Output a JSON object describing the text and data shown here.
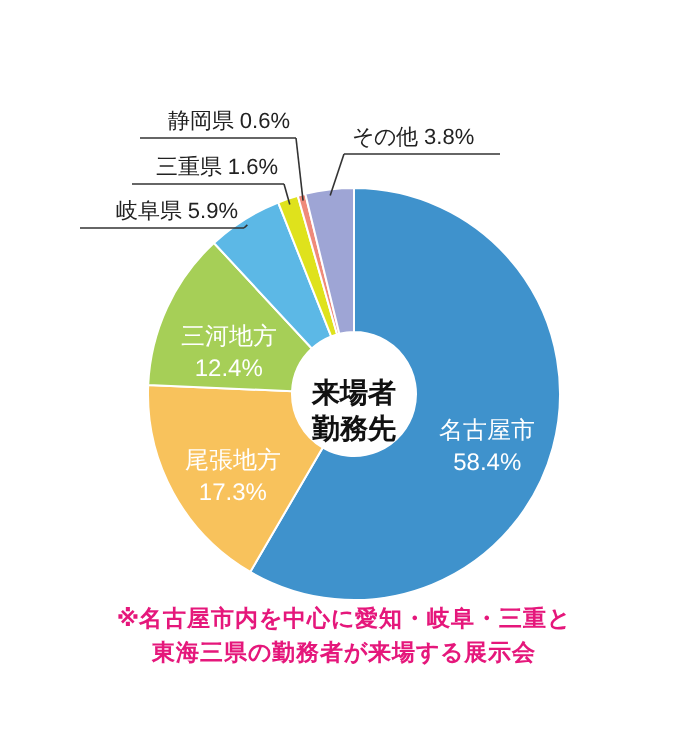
{
  "chart_data": {
    "type": "donut",
    "title": "来場者勤務先",
    "categories": [
      "名古屋市",
      "尾張地方",
      "三河地方",
      "岐阜県",
      "三重県",
      "静岡県",
      "その他"
    ],
    "values": [
      58.4,
      17.3,
      12.4,
      5.9,
      1.6,
      0.6,
      3.8
    ],
    "value_labels": [
      "58.4%",
      "17.3%",
      "12.4%",
      "5.9%",
      "1.6%",
      "0.6%",
      "3.8%"
    ],
    "colors": [
      "#3f92cc",
      "#f8c25c",
      "#a6cf57",
      "#5cb8e6",
      "#dfe21c",
      "#ef8a7a",
      "#9ea5d5"
    ],
    "annotations": [
      "※名古屋市内を中心に愛知・岐阜・三重と東海三県の勤務者が来場する展示会"
    ]
  }
}
